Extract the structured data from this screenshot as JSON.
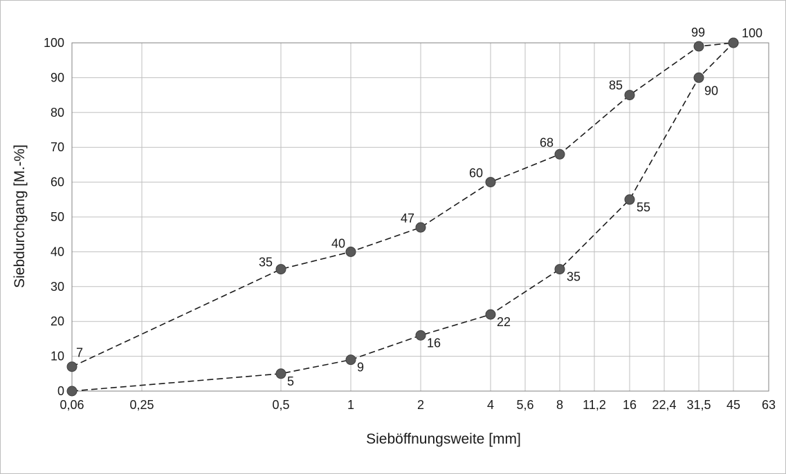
{
  "chart_data": {
    "type": "line",
    "xlabel": "Sieböffnungsweite [mm]",
    "ylabel": "Siebdurchgang [M.-%]",
    "x_ticks": [
      "0,06",
      "0,25",
      "0,5",
      "1",
      "2",
      "4",
      "5,6",
      "8",
      "11,2",
      "16",
      "22,4",
      "31,5",
      "45",
      "63"
    ],
    "y_ticks": [
      0,
      10,
      20,
      30,
      40,
      50,
      60,
      70,
      80,
      90,
      100
    ],
    "ylim": [
      0,
      100
    ],
    "x_scale": "log2",
    "grid": true,
    "series": [
      {
        "points": [
          {
            "x": "0,06",
            "y": 7
          },
          {
            "x": "0,5",
            "y": 35
          },
          {
            "x": "1",
            "y": 40
          },
          {
            "x": "2",
            "y": 47
          },
          {
            "x": "4",
            "y": 60
          },
          {
            "x": "8",
            "y": 68
          },
          {
            "x": "16",
            "y": 85
          },
          {
            "x": "31,5",
            "y": 99
          },
          {
            "x": "45",
            "y": 100
          }
        ]
      },
      {
        "points": [
          {
            "x": "0,06",
            "y": 0
          },
          {
            "x": "0,5",
            "y": 5
          },
          {
            "x": "1",
            "y": 9
          },
          {
            "x": "2",
            "y": 16
          },
          {
            "x": "4",
            "y": 22
          },
          {
            "x": "8",
            "y": 35
          },
          {
            "x": "16",
            "y": 55
          },
          {
            "x": "31,5",
            "y": 90
          },
          {
            "x": "45",
            "y": 100
          }
        ]
      }
    ],
    "colors": {
      "line": "#1a1a1a",
      "marker": "#595959",
      "grid": "#bfbfbf"
    }
  }
}
